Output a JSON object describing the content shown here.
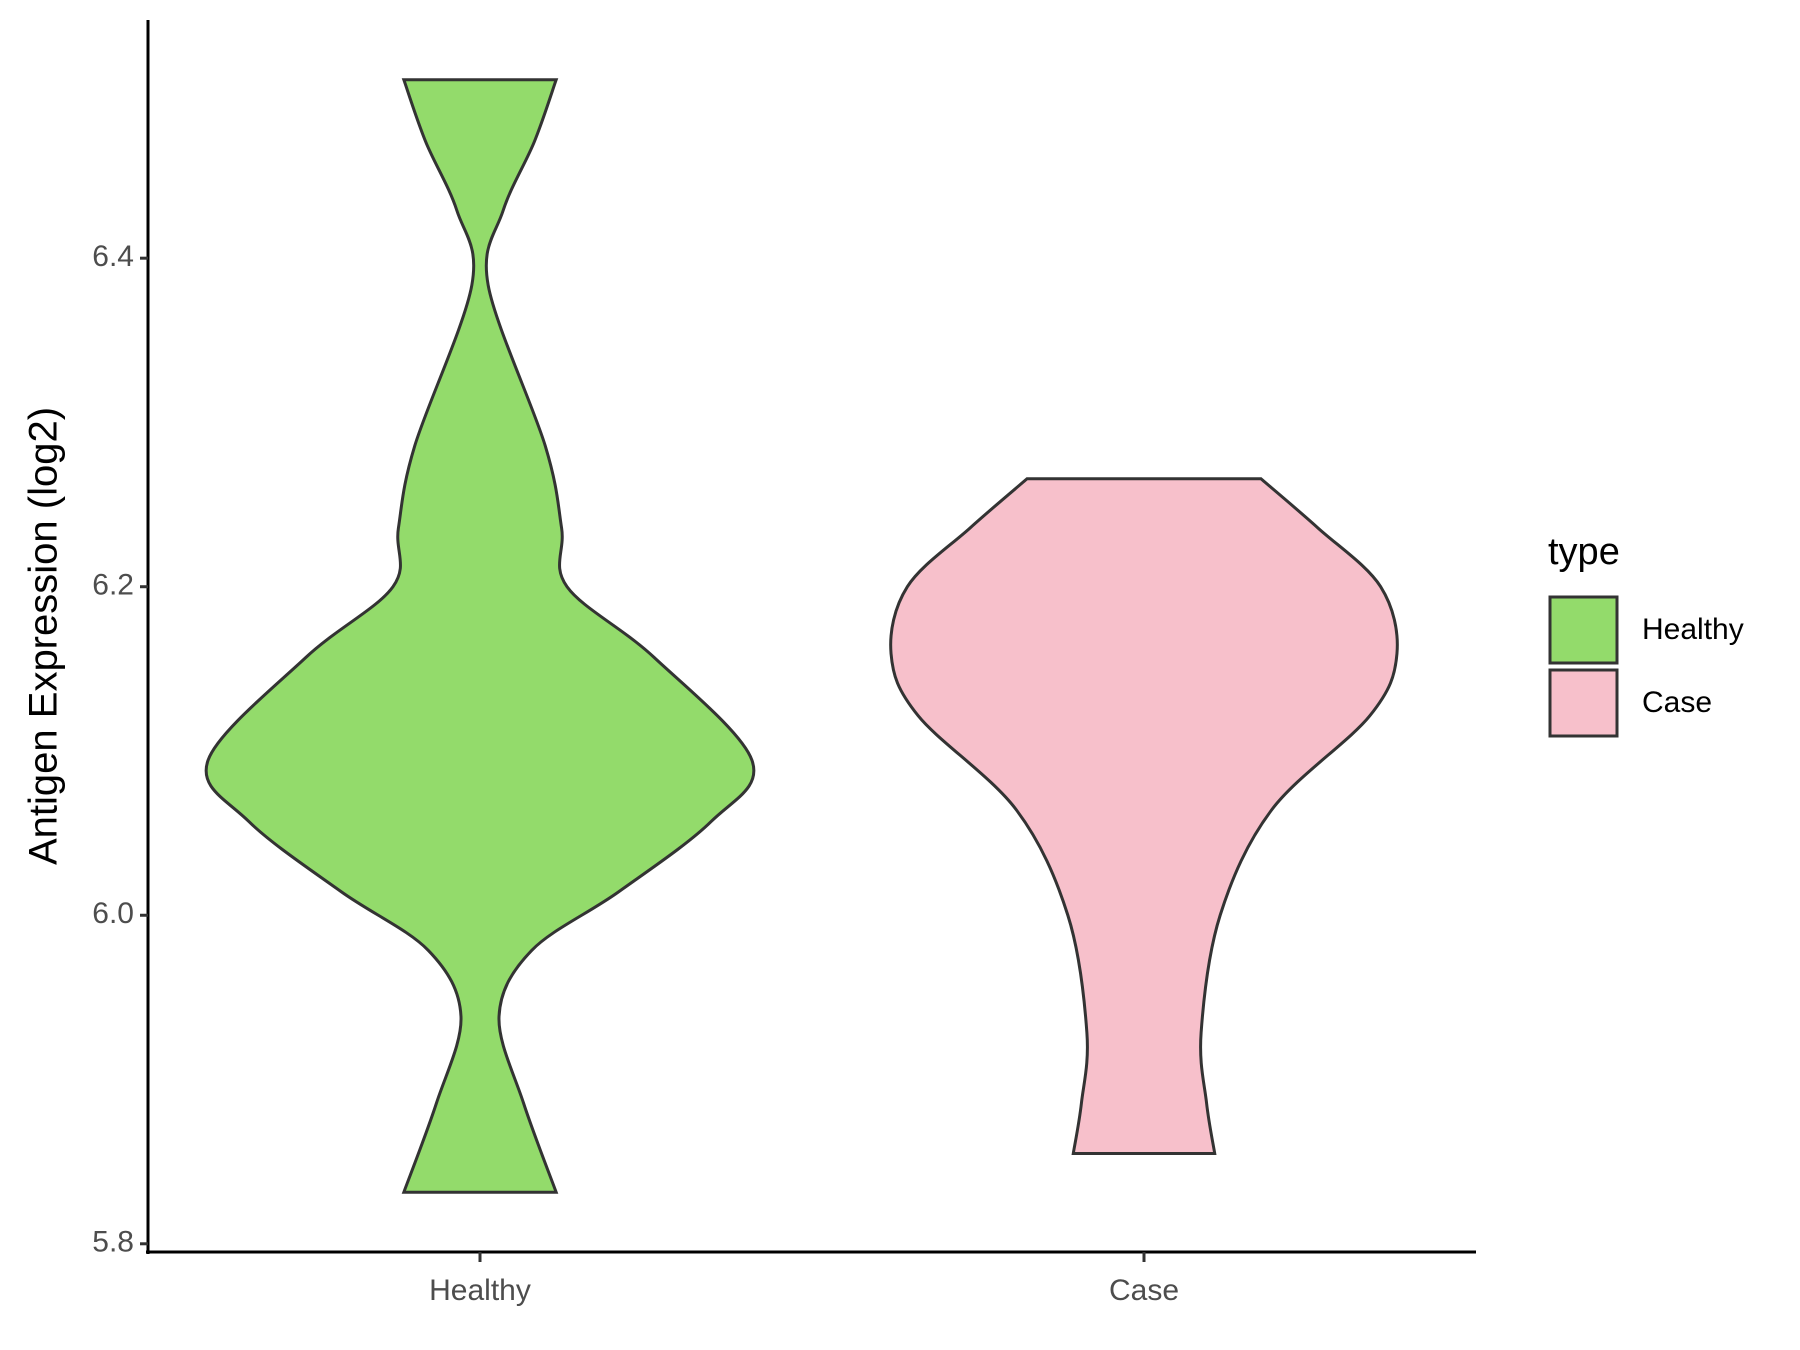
{
  "chart_data": {
    "type": "violin",
    "y_label": "Antigen Expression (log2)",
    "categories": [
      "Healthy",
      "Case"
    ],
    "legend_title": "type",
    "legend_position": "right",
    "series": [
      {
        "name": "Healthy",
        "color": "#93DB6B",
        "y": [
          6.5086,
          6.471,
          6.429,
          6.3836,
          6.2857,
          6.2357,
          6.2,
          6.157,
          6.0943,
          6.0571,
          6.0143,
          5.9786,
          5.9386,
          5.8857,
          5.8314
        ],
        "density": [
          0.28,
          0.2,
          0.085,
          0.03,
          0.24,
          0.3,
          0.32,
          0.64,
          1,
          0.85,
          0.51,
          0.19,
          0.07,
          0.16,
          0.28
        ]
      },
      {
        "name": "Case",
        "color": "#F7C0CB",
        "y": [
          6.2657,
          6.2357,
          6.2,
          6.1593,
          6.1214,
          6.0643,
          6.0,
          5.9286,
          5.8857,
          5.855
        ],
        "density": [
          0.43,
          0.64,
          0.87,
          0.93,
          0.83,
          0.47,
          0.28,
          0.21,
          0.23,
          0.26
        ]
      }
    ],
    "ylim": [
      5.795,
      6.545
    ],
    "yticks": [
      {
        "value": 5.8,
        "label": "5.8"
      },
      {
        "value": 6.0,
        "label": "6.0"
      },
      {
        "value": 6.2,
        "label": "6.2"
      },
      {
        "value": 6.4,
        "label": "6.4"
      }
    ],
    "grid": false
  }
}
